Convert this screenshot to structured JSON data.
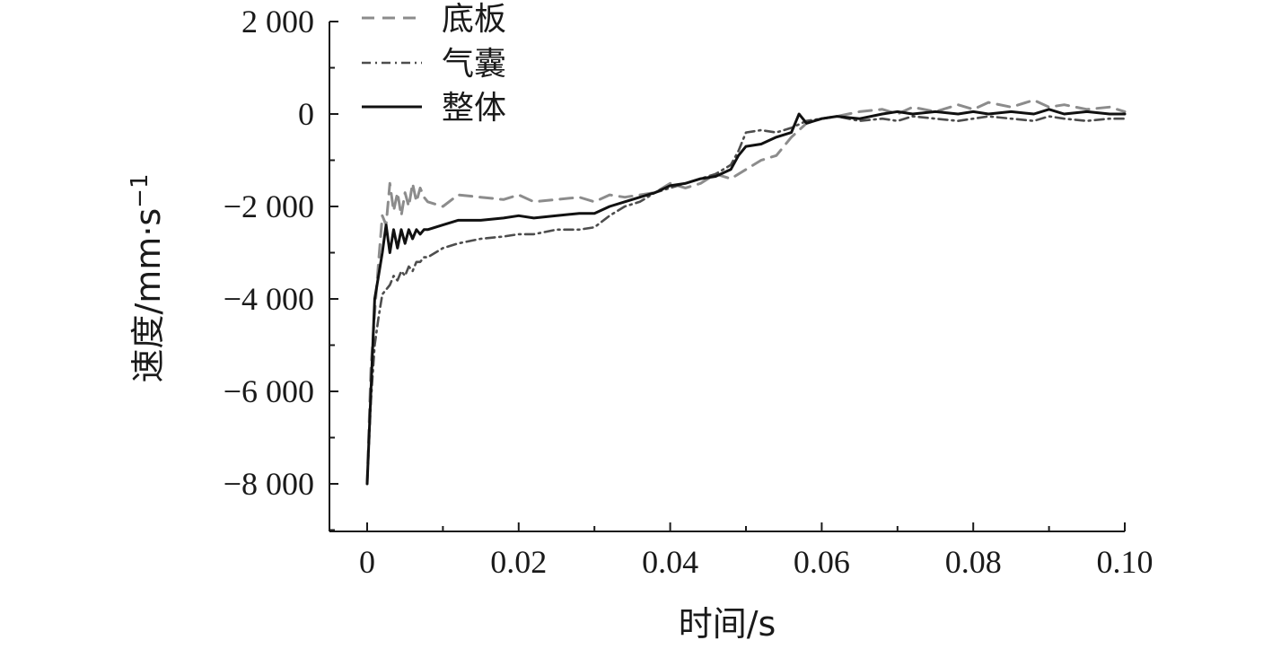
{
  "chart_data": {
    "type": "line",
    "title": "",
    "xlabel": "时间/s",
    "ylabel": "速度/mm·s",
    "ylabel_superscript": "−1",
    "xlim": [
      0,
      0.1
    ],
    "ylim": [
      -9000,
      2000
    ],
    "x_ticks": [
      0,
      0.02,
      0.04,
      0.06,
      0.08,
      0.1
    ],
    "x_tick_labels": [
      "0",
      "0.02",
      "0.04",
      "0.06",
      "0.08",
      "0.10"
    ],
    "y_ticks": [
      2000,
      0,
      -2000,
      -4000,
      -6000,
      -8000
    ],
    "y_tick_labels": [
      "2 000",
      "0",
      "−2 000",
      "−4 000",
      "−6 000",
      "−8 000"
    ],
    "grid": false,
    "legend": "top-left",
    "series": [
      {
        "name": "底板",
        "color": "#8c8c8c",
        "dash": "dashed",
        "x": [
          0,
          0.0005,
          0.001,
          0.0015,
          0.002,
          0.0025,
          0.003,
          0.0035,
          0.004,
          0.0045,
          0.005,
          0.0055,
          0.006,
          0.0065,
          0.007,
          0.0075,
          0.008,
          0.01,
          0.012,
          0.015,
          0.018,
          0.02,
          0.022,
          0.025,
          0.028,
          0.03,
          0.032,
          0.034,
          0.036,
          0.038,
          0.04,
          0.042,
          0.044,
          0.046,
          0.048,
          0.05,
          0.052,
          0.054,
          0.056,
          0.058,
          0.06,
          0.062,
          0.065,
          0.068,
          0.07,
          0.072,
          0.075,
          0.078,
          0.08,
          0.082,
          0.085,
          0.088,
          0.09,
          0.092,
          0.095,
          0.098,
          0.1
        ],
        "y": [
          -8000,
          -5500,
          -4300,
          -3200,
          -2200,
          -2400,
          -1500,
          -2100,
          -1700,
          -2200,
          -1700,
          -2000,
          -1500,
          -1900,
          -1600,
          -1800,
          -1900,
          -2000,
          -1750,
          -1800,
          -1850,
          -1750,
          -1900,
          -1850,
          -1800,
          -1900,
          -1750,
          -1800,
          -1750,
          -1700,
          -1500,
          -1600,
          -1500,
          -1300,
          -1400,
          -1200,
          -1000,
          -900,
          -500,
          -200,
          -100,
          -50,
          50,
          100,
          0,
          150,
          50,
          200,
          100,
          250,
          150,
          300,
          150,
          200,
          100,
          150,
          50
        ]
      },
      {
        "name": "气囊",
        "color": "#4d4d4d",
        "dash": "dashdot",
        "x": [
          0,
          0.0005,
          0.001,
          0.0015,
          0.002,
          0.0025,
          0.003,
          0.0035,
          0.004,
          0.0045,
          0.005,
          0.0055,
          0.006,
          0.0065,
          0.007,
          0.0075,
          0.008,
          0.01,
          0.012,
          0.015,
          0.018,
          0.02,
          0.022,
          0.025,
          0.028,
          0.03,
          0.032,
          0.034,
          0.036,
          0.038,
          0.04,
          0.042,
          0.044,
          0.046,
          0.048,
          0.049,
          0.05,
          0.052,
          0.054,
          0.056,
          0.058,
          0.06,
          0.062,
          0.065,
          0.068,
          0.07,
          0.072,
          0.075,
          0.078,
          0.08,
          0.082,
          0.085,
          0.088,
          0.09,
          0.092,
          0.095,
          0.098,
          0.1
        ],
        "y": [
          -8000,
          -6200,
          -5000,
          -4400,
          -3900,
          -3800,
          -3700,
          -3500,
          -3600,
          -3400,
          -3500,
          -3300,
          -3400,
          -3200,
          -3200,
          -3100,
          -3100,
          -2900,
          -2800,
          -2700,
          -2650,
          -2600,
          -2600,
          -2500,
          -2500,
          -2450,
          -2200,
          -2000,
          -1900,
          -1700,
          -1600,
          -1500,
          -1400,
          -1300,
          -1100,
          -800,
          -400,
          -350,
          -400,
          -300,
          -150,
          -100,
          -50,
          -150,
          -100,
          -150,
          -50,
          -100,
          -150,
          -100,
          -50,
          -100,
          -150,
          -50,
          -100,
          -150,
          -100,
          -100
        ]
      },
      {
        "name": "整体",
        "color": "#111111",
        "dash": "solid",
        "x": [
          0,
          0.0005,
          0.001,
          0.0015,
          0.002,
          0.0025,
          0.003,
          0.0035,
          0.004,
          0.0045,
          0.005,
          0.0055,
          0.006,
          0.0065,
          0.007,
          0.0075,
          0.008,
          0.01,
          0.012,
          0.015,
          0.018,
          0.02,
          0.022,
          0.025,
          0.028,
          0.03,
          0.032,
          0.034,
          0.036,
          0.038,
          0.04,
          0.042,
          0.044,
          0.046,
          0.048,
          0.049,
          0.05,
          0.052,
          0.054,
          0.056,
          0.057,
          0.058,
          0.06,
          0.062,
          0.065,
          0.068,
          0.07,
          0.072,
          0.075,
          0.078,
          0.08,
          0.082,
          0.085,
          0.088,
          0.09,
          0.092,
          0.095,
          0.098,
          0.1
        ],
        "y": [
          -8000,
          -6000,
          -4000,
          -3500,
          -3000,
          -2400,
          -3000,
          -2500,
          -2900,
          -2500,
          -2800,
          -2500,
          -2700,
          -2500,
          -2600,
          -2500,
          -2500,
          -2400,
          -2300,
          -2300,
          -2250,
          -2200,
          -2250,
          -2200,
          -2150,
          -2150,
          -2000,
          -1900,
          -1800,
          -1700,
          -1550,
          -1500,
          -1400,
          -1350,
          -1200,
          -900,
          -700,
          -650,
          -500,
          -400,
          0,
          -200,
          -100,
          -50,
          -100,
          0,
          50,
          0,
          50,
          0,
          50,
          0,
          50,
          0,
          100,
          0,
          50,
          0,
          0
        ]
      }
    ]
  }
}
